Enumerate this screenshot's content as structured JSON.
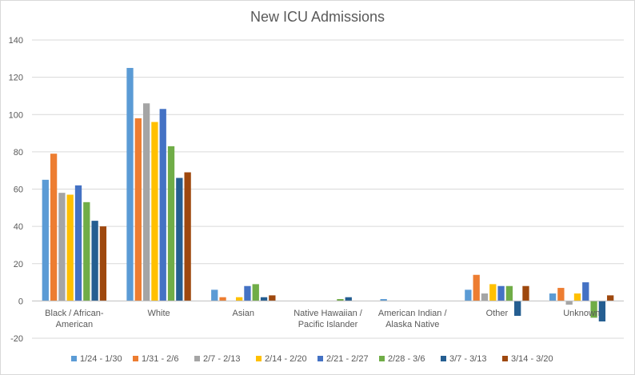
{
  "chart_data": {
    "type": "bar",
    "title": "New ICU Admissions",
    "xlabel": "",
    "ylabel": "",
    "ylim": [
      -20,
      140
    ],
    "yticks": [
      -20,
      0,
      20,
      40,
      60,
      80,
      100,
      120,
      140
    ],
    "grid": true,
    "legend": "bottom",
    "categories": [
      [
        "Black / African-",
        "American"
      ],
      [
        "White"
      ],
      [
        "Asian"
      ],
      [
        "Native Hawaiian /",
        "Pacific Islander"
      ],
      [
        "American Indian /",
        "Alaska Native"
      ],
      [
        "Other"
      ],
      [
        "Unknown"
      ]
    ],
    "series": [
      {
        "name": "1/24 - 1/30",
        "color": "#5b9bd5",
        "values": [
          65,
          125,
          6,
          0,
          1,
          6,
          4
        ]
      },
      {
        "name": "1/31 - 2/6",
        "color": "#ed7d31",
        "values": [
          79,
          98,
          2,
          0,
          0,
          14,
          7
        ]
      },
      {
        "name": "2/7 - 2/13",
        "color": "#a5a5a5",
        "values": [
          58,
          106,
          0,
          0,
          0,
          4,
          -2
        ]
      },
      {
        "name": "2/14 - 2/20",
        "color": "#ffc000",
        "values": [
          57,
          96,
          2,
          0,
          0,
          9,
          4
        ]
      },
      {
        "name": "2/21 - 2/27",
        "color": "#4472c4",
        "values": [
          62,
          103,
          8,
          0,
          0,
          8,
          10
        ]
      },
      {
        "name": "2/28 - 3/6",
        "color": "#70ad47",
        "values": [
          53,
          83,
          9,
          1,
          0,
          8,
          -9
        ]
      },
      {
        "name": "3/7 - 3/13",
        "color": "#255e91",
        "values": [
          43,
          66,
          2,
          2,
          0,
          -8,
          -11
        ]
      },
      {
        "name": "3/14 - 3/20",
        "color": "#9e480e",
        "values": [
          40,
          69,
          3,
          0,
          0,
          8,
          3
        ]
      }
    ]
  }
}
